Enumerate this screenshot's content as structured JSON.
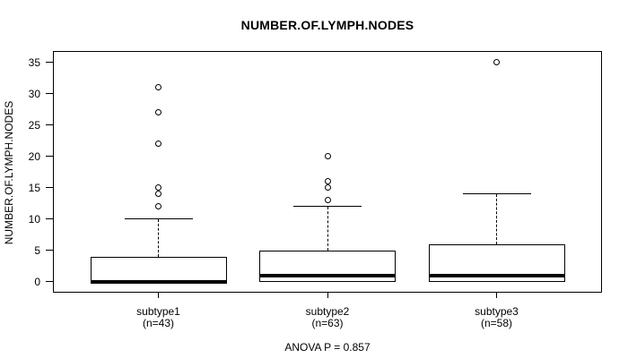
{
  "chart_data": {
    "type": "boxplot",
    "title": "NUMBER.OF.LYMPH.NODES",
    "ylabel": "NUMBER.OF.LYMPH.NODES",
    "xlabel": "",
    "ylim": [
      0,
      35
    ],
    "yticks": [
      0,
      5,
      10,
      15,
      20,
      25,
      30,
      35
    ],
    "annotation": "ANOVA P = 0.857",
    "legend": "none",
    "grid": false,
    "groups": [
      {
        "label": "subtype1",
        "n_label": "(n=43)",
        "n": 43,
        "whisker_low": 0,
        "q1": 0,
        "median": 0,
        "q3": 4,
        "whisker_high": 10,
        "outliers": [
          12,
          14,
          15,
          22,
          27,
          31
        ]
      },
      {
        "label": "subtype2",
        "n_label": "(n=63)",
        "n": 63,
        "whisker_low": 0,
        "q1": 0,
        "median": 1,
        "q3": 5,
        "whisker_high": 12,
        "outliers": [
          13,
          15,
          16,
          20
        ]
      },
      {
        "label": "subtype3",
        "n_label": "(n=58)",
        "n": 58,
        "whisker_low": 0,
        "q1": 0,
        "median": 1,
        "q3": 6,
        "whisker_high": 14,
        "outliers": [
          35
        ]
      }
    ],
    "colors": {
      "line": "#000000",
      "box_fill": "#ffffff",
      "background": "#ffffff"
    }
  }
}
